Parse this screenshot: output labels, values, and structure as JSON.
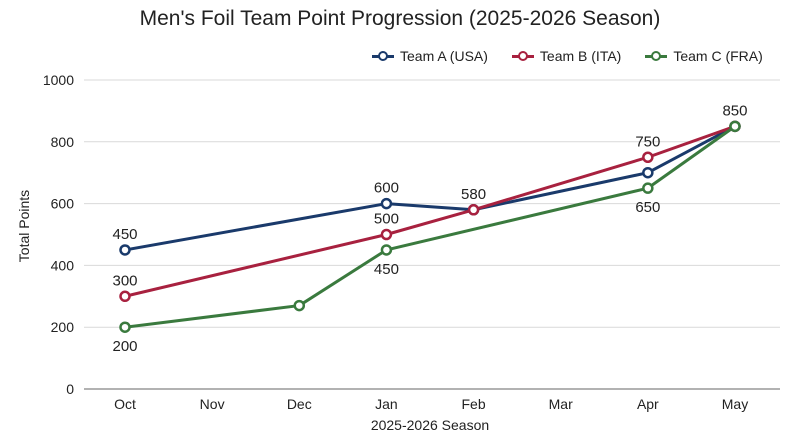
{
  "chart_data": {
    "type": "line",
    "title": "Men's Foil Team Point Progression (2025-2026 Season)",
    "xlabel": "2025-2026 Season",
    "ylabel": "Total Points",
    "categories": [
      "Oct",
      "Nov",
      "Dec",
      "Jan",
      "Feb",
      "Mar",
      "Apr",
      "May"
    ],
    "ylim": [
      0,
      1000
    ],
    "yticks": [
      0,
      200,
      400,
      600,
      800,
      1000
    ],
    "grid": "horizontal",
    "legend_position": "top-right",
    "series": [
      {
        "name": "Team A (USA)",
        "color": "#1a3a6b",
        "points": [
          [
            "Oct",
            450
          ],
          [
            "Jan",
            600
          ],
          [
            "Feb",
            580
          ],
          [
            "Apr",
            700
          ],
          [
            "May",
            850
          ]
        ],
        "labels": [
          {
            "x": "Oct",
            "y": 450,
            "text": "450",
            "pos": "above"
          },
          {
            "x": "Jan",
            "y": 600,
            "text": "600",
            "pos": "above"
          },
          {
            "x": "May",
            "y": 850,
            "text": "850",
            "pos": "above"
          }
        ]
      },
      {
        "name": "Team B (ITA)",
        "color": "#a8213f",
        "points": [
          [
            "Oct",
            300
          ],
          [
            "Jan",
            500
          ],
          [
            "Feb",
            580
          ],
          [
            "Apr",
            750
          ],
          [
            "May",
            850
          ]
        ],
        "labels": [
          {
            "x": "Oct",
            "y": 300,
            "text": "300",
            "pos": "above"
          },
          {
            "x": "Jan",
            "y": 500,
            "text": "500",
            "pos": "above"
          },
          {
            "x": "Feb",
            "y": 580,
            "text": "580",
            "pos": "above"
          },
          {
            "x": "Apr",
            "y": 750,
            "text": "750",
            "pos": "above"
          }
        ]
      },
      {
        "name": "Team C (FRA)",
        "color": "#3a7a3e",
        "points": [
          [
            "Oct",
            200
          ],
          [
            "Dec",
            270
          ],
          [
            "Jan",
            450
          ],
          [
            "Apr",
            650
          ],
          [
            "May",
            850
          ]
        ],
        "labels": [
          {
            "x": "Oct",
            "y": 200,
            "text": "200",
            "pos": "below"
          },
          {
            "x": "Jan",
            "y": 450,
            "text": "450",
            "pos": "below"
          },
          {
            "x": "Apr",
            "y": 650,
            "text": "650",
            "pos": "below"
          }
        ]
      }
    ]
  }
}
